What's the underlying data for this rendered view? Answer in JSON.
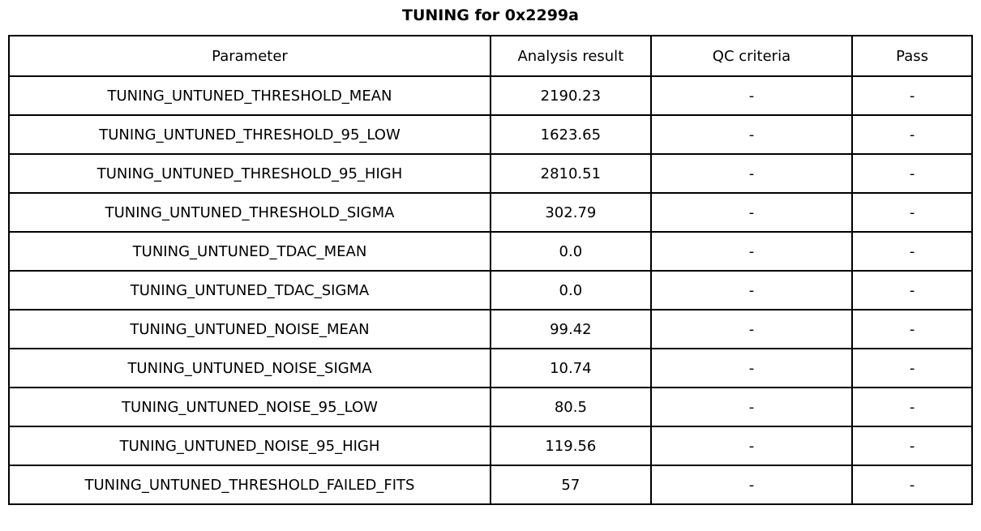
{
  "title": "TUNING for 0x2299a",
  "chart_data": {
    "type": "table",
    "title": "TUNING for 0x2299a",
    "columns": [
      "Parameter",
      "Analysis result",
      "QC criteria",
      "Pass"
    ],
    "rows": [
      {
        "parameter": "TUNING_UNTUNED_THRESHOLD_MEAN",
        "analysis_result": "2190.23",
        "qc_criteria": "-",
        "pass": "-"
      },
      {
        "parameter": "TUNING_UNTUNED_THRESHOLD_95_LOW",
        "analysis_result": "1623.65",
        "qc_criteria": "-",
        "pass": "-"
      },
      {
        "parameter": "TUNING_UNTUNED_THRESHOLD_95_HIGH",
        "analysis_result": "2810.51",
        "qc_criteria": "-",
        "pass": "-"
      },
      {
        "parameter": "TUNING_UNTUNED_THRESHOLD_SIGMA",
        "analysis_result": "302.79",
        "qc_criteria": "-",
        "pass": "-"
      },
      {
        "parameter": "TUNING_UNTUNED_TDAC_MEAN",
        "analysis_result": "0.0",
        "qc_criteria": "-",
        "pass": "-"
      },
      {
        "parameter": "TUNING_UNTUNED_TDAC_SIGMA",
        "analysis_result": "0.0",
        "qc_criteria": "-",
        "pass": "-"
      },
      {
        "parameter": "TUNING_UNTUNED_NOISE_MEAN",
        "analysis_result": "99.42",
        "qc_criteria": "-",
        "pass": "-"
      },
      {
        "parameter": "TUNING_UNTUNED_NOISE_SIGMA",
        "analysis_result": "10.74",
        "qc_criteria": "-",
        "pass": "-"
      },
      {
        "parameter": "TUNING_UNTUNED_NOISE_95_LOW",
        "analysis_result": "80.5",
        "qc_criteria": "-",
        "pass": "-"
      },
      {
        "parameter": "TUNING_UNTUNED_NOISE_95_HIGH",
        "analysis_result": "119.56",
        "qc_criteria": "-",
        "pass": "-"
      },
      {
        "parameter": "TUNING_UNTUNED_THRESHOLD_FAILED_FITS",
        "analysis_result": "57",
        "qc_criteria": "-",
        "pass": "-"
      }
    ],
    "colors": {
      "border": "#000000",
      "background": "#ffffff",
      "text": "#000000"
    }
  }
}
